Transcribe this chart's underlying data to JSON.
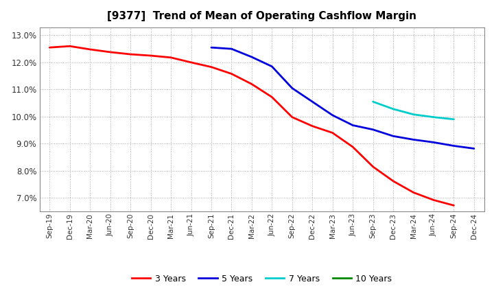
{
  "title": "[9377]  Trend of Mean of Operating Cashflow Margin",
  "ylim": [
    0.065,
    0.133
  ],
  "yticks": [
    0.07,
    0.08,
    0.09,
    0.1,
    0.11,
    0.12,
    0.13
  ],
  "background_color": "#ffffff",
  "grid_color": "#aaaaaa",
  "x_labels": [
    "Sep-19",
    "Dec-19",
    "Mar-20",
    "Jun-20",
    "Sep-20",
    "Dec-20",
    "Mar-21",
    "Jun-21",
    "Sep-21",
    "Dec-21",
    "Mar-22",
    "Jun-22",
    "Sep-22",
    "Dec-22",
    "Mar-23",
    "Jun-23",
    "Sep-23",
    "Dec-23",
    "Mar-24",
    "Jun-24",
    "Sep-24",
    "Dec-24"
  ],
  "series": {
    "3 Years": {
      "color": "#ff0000",
      "linewidth": 2.0,
      "data": [
        [
          "Sep-19",
          0.1255
        ],
        [
          "Dec-19",
          0.126
        ],
        [
          "Mar-20",
          0.1248
        ],
        [
          "Jun-20",
          0.1238
        ],
        [
          "Sep-20",
          0.123
        ],
        [
          "Dec-20",
          0.1225
        ],
        [
          "Mar-21",
          0.1218
        ],
        [
          "Jun-21",
          0.12
        ],
        [
          "Sep-21",
          0.1183
        ],
        [
          "Dec-21",
          0.1158
        ],
        [
          "Mar-22",
          0.112
        ],
        [
          "Jun-22",
          0.1072
        ],
        [
          "Sep-22",
          0.0998
        ],
        [
          "Dec-22",
          0.0965
        ],
        [
          "Mar-23",
          0.094
        ],
        [
          "Jun-23",
          0.0888
        ],
        [
          "Sep-23",
          0.0815
        ],
        [
          "Dec-23",
          0.0762
        ],
        [
          "Mar-24",
          0.072
        ],
        [
          "Jun-24",
          0.0692
        ],
        [
          "Sep-24",
          0.0672
        ]
      ]
    },
    "5 Years": {
      "color": "#0000dd",
      "linewidth": 2.0,
      "data": [
        [
          "Sep-21",
          0.1255
        ],
        [
          "Dec-21",
          0.125
        ],
        [
          "Mar-22",
          0.122
        ],
        [
          "Jun-22",
          0.1185
        ],
        [
          "Sep-22",
          0.1105
        ],
        [
          "Dec-22",
          0.1055
        ],
        [
          "Mar-23",
          0.1005
        ],
        [
          "Jun-23",
          0.0968
        ],
        [
          "Sep-23",
          0.0952
        ],
        [
          "Dec-23",
          0.0928
        ],
        [
          "Mar-24",
          0.0915
        ],
        [
          "Jun-24",
          0.0905
        ],
        [
          "Sep-24",
          0.0892
        ],
        [
          "Dec-24",
          0.0882
        ]
      ]
    },
    "7 Years": {
      "color": "#00cccc",
      "linewidth": 2.0,
      "data": [
        [
          "Sep-23",
          0.1055
        ],
        [
          "Dec-23",
          0.1028
        ],
        [
          "Mar-24",
          0.1008
        ],
        [
          "Jun-24",
          0.0998
        ],
        [
          "Sep-24",
          0.099
        ]
      ]
    },
    "10 Years": {
      "color": "#008800",
      "linewidth": 2.0,
      "data": []
    }
  },
  "legend_labels": [
    "3 Years",
    "5 Years",
    "7 Years",
    "10 Years"
  ],
  "legend_colors": [
    "#ff0000",
    "#0000dd",
    "#00cccc",
    "#008800"
  ]
}
